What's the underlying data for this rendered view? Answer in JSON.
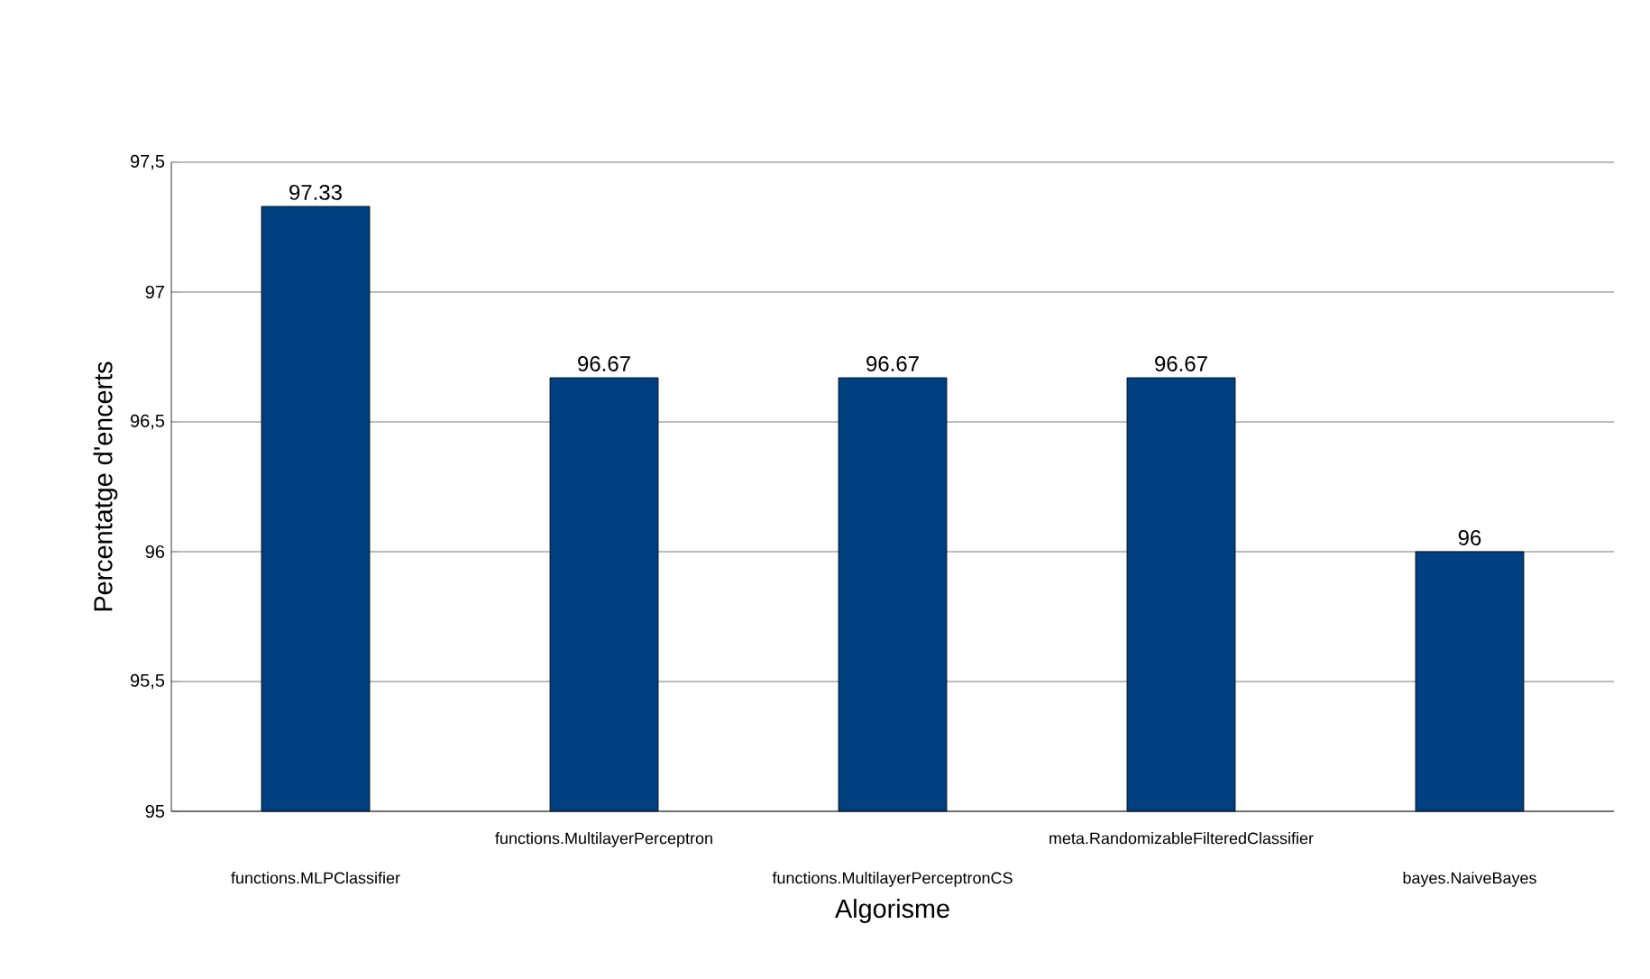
{
  "chart_data": {
    "type": "bar",
    "xlabel": "Algorisme",
    "ylabel": "Percentatge d'encerts",
    "categories": [
      "functions.MLPClassifier",
      "functions.MultilayerPerceptron",
      "functions.MultilayerPerceptronCS",
      "meta.RandomizableFilteredClassifier",
      "bayes.NaiveBayes"
    ],
    "values": [
      97.33,
      96.67,
      96.67,
      96.67,
      96
    ],
    "value_labels": [
      "97.33",
      "96.67",
      "96.67",
      "96.67",
      "96"
    ],
    "color": "#004080",
    "ylim": [
      95,
      97.5
    ],
    "yticks": [
      95,
      {
        "value": 95.5,
        "label": "95,5"
      },
      96,
      {
        "value": 96.5,
        "label": "96,5"
      },
      97,
      {
        "value": 97.5,
        "label": "97,5"
      }
    ],
    "grid": "y"
  }
}
